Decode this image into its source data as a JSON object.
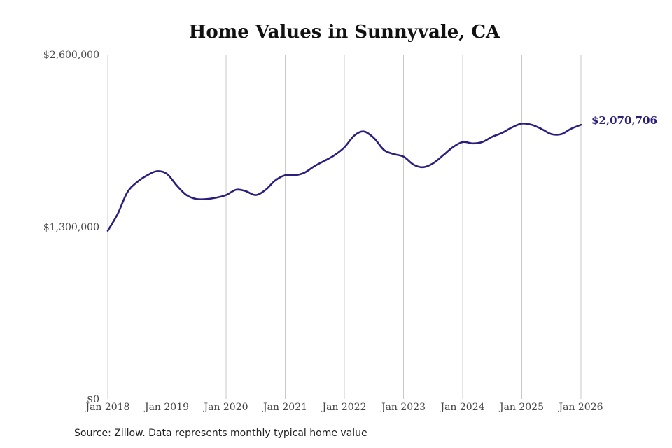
{
  "chart_data": {
    "type": "line",
    "title": "Home Values in Sunnyvale, CA",
    "source": "Source: Zillow. Data represents monthly typical home value",
    "ylim": [
      0,
      2600000
    ],
    "y_ticks": [
      {
        "value": 2600000,
        "label": "$2,600,000"
      },
      {
        "value": 1300000,
        "label": "$1,300,000"
      },
      {
        "value": 0,
        "label": "$0"
      }
    ],
    "x_range": [
      2018,
      2026
    ],
    "x_ticks": [
      {
        "value": 2018,
        "label": "Jan 2018"
      },
      {
        "value": 2019,
        "label": "Jan 2019"
      },
      {
        "value": 2020,
        "label": "Jan 2020"
      },
      {
        "value": 2021,
        "label": "Jan 2021"
      },
      {
        "value": 2022,
        "label": "Jan 2022"
      },
      {
        "value": 2023,
        "label": "Jan 2023"
      },
      {
        "value": 2024,
        "label": "Jan 2024"
      },
      {
        "value": 2025,
        "label": "Jan 2025"
      },
      {
        "value": 2026,
        "label": "Jan 2026"
      }
    ],
    "grid": "vertical",
    "line_color": "#2a1f7d",
    "end_label": "$2,070,706",
    "series": [
      {
        "name": "Typical home value",
        "x": [
          2018.0,
          2018.17,
          2018.33,
          2018.5,
          2018.67,
          2018.83,
          2019.0,
          2019.17,
          2019.33,
          2019.5,
          2019.67,
          2019.83,
          2020.0,
          2020.17,
          2020.33,
          2020.5,
          2020.67,
          2020.83,
          2021.0,
          2021.17,
          2021.33,
          2021.5,
          2021.67,
          2021.83,
          2022.0,
          2022.17,
          2022.33,
          2022.5,
          2022.67,
          2022.83,
          2023.0,
          2023.17,
          2023.33,
          2023.5,
          2023.67,
          2023.83,
          2024.0,
          2024.17,
          2024.33,
          2024.5,
          2024.67,
          2024.83,
          2025.0,
          2025.17,
          2025.33,
          2025.5,
          2025.67,
          2025.83,
          2026.0
        ],
        "values": [
          1270000,
          1400000,
          1560000,
          1640000,
          1690000,
          1720000,
          1700000,
          1610000,
          1540000,
          1510000,
          1510000,
          1520000,
          1540000,
          1580000,
          1570000,
          1540000,
          1580000,
          1650000,
          1690000,
          1690000,
          1710000,
          1760000,
          1800000,
          1840000,
          1900000,
          1990000,
          2020000,
          1970000,
          1880000,
          1850000,
          1830000,
          1770000,
          1750000,
          1780000,
          1840000,
          1900000,
          1940000,
          1930000,
          1940000,
          1980000,
          2010000,
          2050000,
          2080000,
          2070000,
          2040000,
          2000000,
          2000000,
          2040000,
          2070706
        ]
      }
    ]
  }
}
